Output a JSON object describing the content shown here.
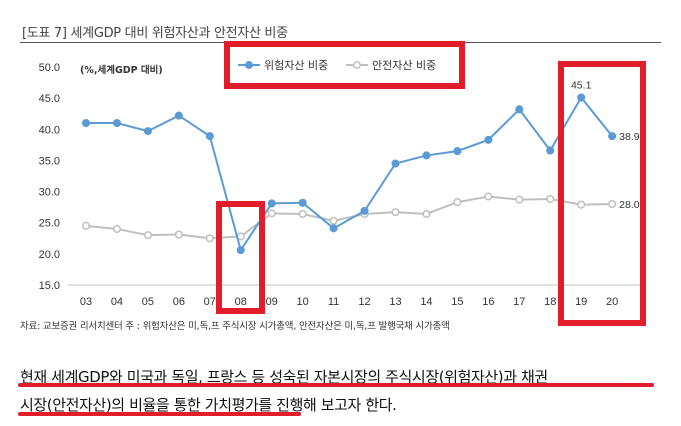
{
  "figure": {
    "title": "[도표 7] 세계GDP 대비 위험자산과 안전자산 비중",
    "source": "자료: 교보증권 리서치센터    주 : 위험자산은 미,독,프 주식시장 시가총액, 안전자산은 미,독,프 발행국채 시가총액"
  },
  "chart_data": {
    "type": "line",
    "unit_label": "(%,세계GDP 대비)",
    "categories": [
      "03",
      "04",
      "05",
      "06",
      "07",
      "08",
      "09",
      "10",
      "11",
      "12",
      "13",
      "14",
      "15",
      "16",
      "17",
      "18",
      "19",
      "20"
    ],
    "ylim": [
      15.0,
      50.0
    ],
    "yticks": [
      "50.0",
      "45.0",
      "40.0",
      "35.0",
      "30.0",
      "25.0",
      "20.0",
      "15.0"
    ],
    "grid": false,
    "legend_position": "top",
    "series": [
      {
        "name": "위험자산 비중",
        "color": "#5b9bd5",
        "filled": true,
        "values": [
          41.0,
          41.0,
          39.7,
          42.2,
          38.9,
          20.6,
          28.1,
          28.2,
          24.1,
          26.9,
          34.5,
          35.8,
          36.5,
          38.3,
          43.2,
          36.6,
          45.1,
          38.9
        ]
      },
      {
        "name": "안전자산 비중",
        "color": "#bfbfbf",
        "filled": false,
        "values": [
          24.5,
          24.0,
          23.0,
          23.1,
          22.5,
          22.8,
          26.5,
          26.4,
          25.3,
          26.4,
          26.7,
          26.4,
          28.3,
          29.2,
          28.7,
          28.8,
          27.9,
          28.0
        ]
      }
    ],
    "data_labels": [
      {
        "series": 0,
        "index": 16,
        "text": "45.1"
      },
      {
        "series": 0,
        "index": 17,
        "text": "38.9"
      },
      {
        "series": 1,
        "index": 17,
        "text": "28.0"
      }
    ]
  },
  "text": {
    "line1": "현재 세계GDP와 미국과 독일, 프랑스 등 성숙된 자본시장의 주식시장(위험자산)과 채권",
    "line2": "시장(안전자산)의 비율을 통한 가치평가를 진행해 보고자 한다."
  },
  "colors": {
    "annotation_red": "#e21d2b"
  }
}
